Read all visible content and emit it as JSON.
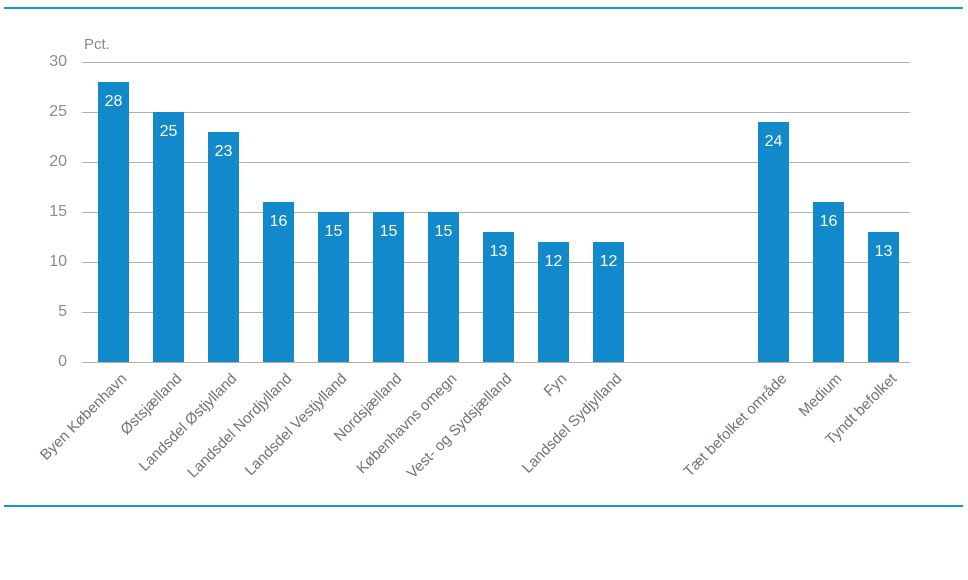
{
  "frame": {
    "accent_rule_color": "#1a94d2"
  },
  "chart_data": {
    "type": "bar",
    "title": "",
    "unit_label": "Pct.",
    "ylabel": "Pct.",
    "ylim": [
      0,
      30
    ],
    "yticks": [
      0,
      5,
      10,
      15,
      20,
      25,
      30
    ],
    "grid": true,
    "legend": false,
    "bar_color": "#1189ca",
    "grid_color": "#b4b0a5",
    "axis_text_color": "#8b8b86",
    "category_text_color": "#76726a",
    "value_label_color": "#ffffff",
    "groups": [
      {
        "categories": [
          "Byen København",
          "Østsjælland",
          "Landsdel Østjylland",
          "Landsdel Nordjylland",
          "Landsdel Vestjylland",
          "Nordsjælland",
          "Københavns omegn",
          "Vest- og Sydsjælland",
          "Fyn",
          "Landsdel Sydjylland"
        ],
        "values": [
          28,
          25,
          23,
          16,
          15,
          15,
          15,
          13,
          12,
          12
        ]
      },
      {
        "categories": [
          "Tæt befolket område",
          "Medium",
          "Tyndt befolket"
        ],
        "values": [
          24,
          16,
          13
        ]
      }
    ]
  }
}
